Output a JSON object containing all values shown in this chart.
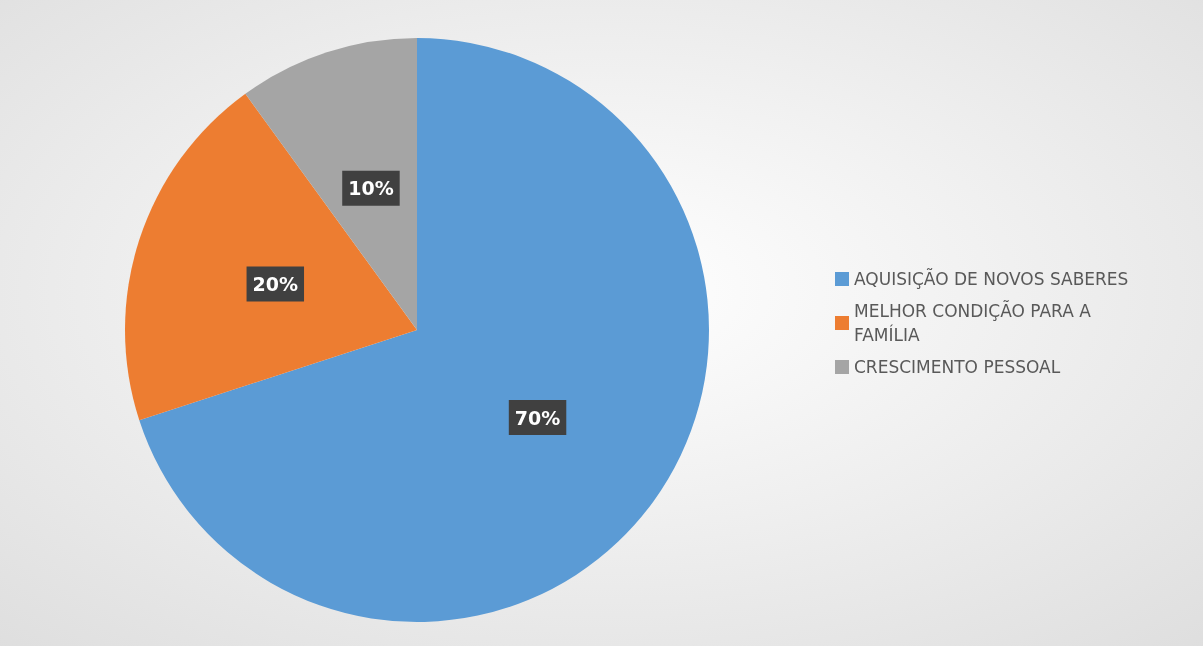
{
  "chart_data": {
    "type": "pie",
    "categories": [
      "AQUISIÇÃO DE NOVOS SABERES",
      "MELHOR CONDIÇÃO PARA A FAMÍLIA",
      "CRESCIMENTO PESSOAL"
    ],
    "values": [
      70,
      20,
      10
    ],
    "colors": [
      "#5b9bd5",
      "#ed7d31",
      "#a5a5a5"
    ],
    "value_labels": [
      "70%",
      "20%",
      "10%"
    ],
    "legend": "right"
  }
}
